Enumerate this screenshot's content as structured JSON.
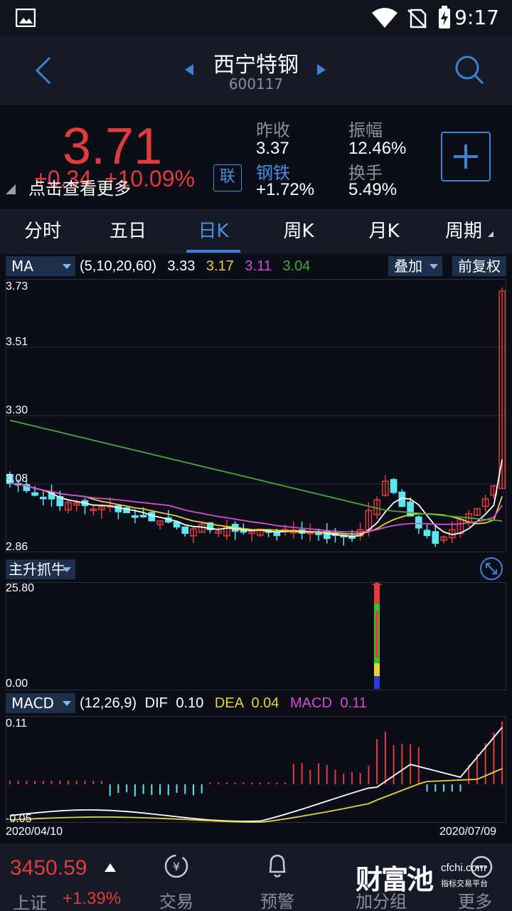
{
  "status_bar": {
    "time": "9:17"
  },
  "header": {
    "stock_name": "西宁特钢",
    "stock_code": "600117"
  },
  "quote": {
    "price": "3.71",
    "change": "+0.34",
    "change_pct": "+10.09%",
    "hint": "点击查看更多",
    "badge": "联",
    "prev_close_label": "昨收",
    "prev_close": "3.37",
    "sector_label": "钢铁",
    "sector_change": "+1.72%",
    "amplitude_label": "振幅",
    "amplitude": "12.46%",
    "turnover_label": "换手",
    "turnover": "5.49%"
  },
  "tabs": [
    {
      "label": "分时"
    },
    {
      "label": "五日"
    },
    {
      "label": "日K"
    },
    {
      "label": "周K"
    },
    {
      "label": "月K"
    },
    {
      "label": "周期"
    }
  ],
  "kline": {
    "indicator": "MA",
    "params": "(5,10,20,60)",
    "ma5": "3.33",
    "ma10": "3.17",
    "ma20": "3.11",
    "ma60": "3.04",
    "overlay_button": "叠加",
    "adjust_button": "前复权",
    "y_labels": [
      "3.73",
      "3.51",
      "3.30",
      "3.08",
      "2.86"
    ]
  },
  "sub_indicator": {
    "name": "主升抓牛",
    "y_top": "25.80",
    "y_bottom": "0.00"
  },
  "macd": {
    "indicator": "MACD",
    "params": "(12,26,9)",
    "dif_label": "DIF",
    "dif": "0.10",
    "dea_label": "DEA",
    "dea": "0.04",
    "macd_label": "MACD",
    "macd_val": "0.11",
    "y_top": "0.11",
    "y_bottom": "-0.05",
    "date_start": "2020/04/10",
    "date_end": "2020/07/09"
  },
  "bottom_bar": {
    "index_value": "3450.59",
    "index_name": "上证",
    "index_change": "+1.39%",
    "trade": "交易",
    "alert": "预警",
    "watchlist": "加分组",
    "more": "更多",
    "logo_text": "财富池",
    "logo_site": "cfchi.com",
    "logo_sub": "指标交易平台"
  },
  "colors": {
    "up": "#e23b3b",
    "down": "#5ce6f0",
    "accent": "#3b82d6",
    "ma5": "#ffffff",
    "ma10": "#e6d23a",
    "ma20": "#d94ad9",
    "ma60": "#4aa832"
  }
}
